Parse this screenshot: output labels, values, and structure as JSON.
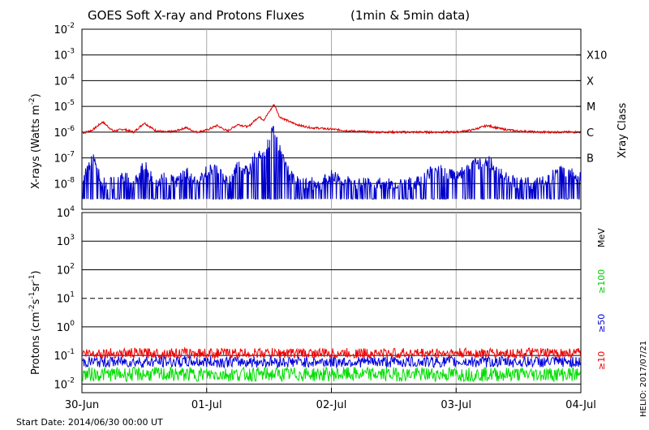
{
  "chart_data": [
    {
      "type": "line",
      "title": "GOES Soft X-ray and Protons Fluxes",
      "subtitle": "(1min & 5min data)",
      "ylabel_base": "X-rays (Watts m",
      "ylabel_exp": "-2",
      "ylabel_end": ")",
      "yscale": "log",
      "ylim": [
        1e-09,
        0.01
      ],
      "yticks": [
        {
          "base": "10",
          "exp": "-2"
        },
        {
          "base": "10",
          "exp": "-3"
        },
        {
          "base": "10",
          "exp": "-4"
        },
        {
          "base": "10",
          "exp": "-5"
        },
        {
          "base": "10",
          "exp": "-6"
        },
        {
          "base": "10",
          "exp": "-7"
        },
        {
          "base": "10",
          "exp": "-8"
        }
      ],
      "right_axis_label": "Xray Class",
      "class_labels": [
        "X10",
        "X",
        "M",
        "C",
        "B"
      ],
      "series": [
        {
          "color": "#dd0000",
          "x": [
            "2014-06-30 00:00",
            "2014-06-30 02:00",
            "2014-06-30 04:00",
            "2014-06-30 06:00",
            "2014-06-30 08:00",
            "2014-06-30 10:00",
            "2014-06-30 12:00",
            "2014-06-30 14:00",
            "2014-06-30 16:00",
            "2014-06-30 18:00",
            "2014-06-30 20:00",
            "2014-06-30 22:00",
            "2014-07-01 00:00",
            "2014-07-01 02:00",
            "2014-07-01 04:00",
            "2014-07-01 06:00",
            "2014-07-01 08:00",
            "2014-07-01 10:00",
            "2014-07-01 11:00",
            "2014-07-01 12:00",
            "2014-07-01 13:00",
            "2014-07-01 14:00",
            "2014-07-01 16:00",
            "2014-07-01 18:00",
            "2014-07-01 20:00",
            "2014-07-01 22:00",
            "2014-07-02 00:00",
            "2014-07-02 04:00",
            "2014-07-02 08:00",
            "2014-07-02 12:00",
            "2014-07-02 16:00",
            "2014-07-02 20:00",
            "2014-07-03 00:00",
            "2014-07-03 03:00",
            "2014-07-03 06:00",
            "2014-07-03 09:00",
            "2014-07-03 12:00",
            "2014-07-03 16:00",
            "2014-07-03 20:00",
            "2014-07-04 00:00"
          ],
          "values": [
            9e-07,
            1.2e-06,
            2.5e-06,
            1.1e-06,
            1.3e-06,
            1e-06,
            2.3e-06,
            1.2e-06,
            1e-06,
            1.1e-06,
            1.5e-06,
            1e-06,
            1.2e-06,
            1.8e-06,
            1.1e-06,
            2e-06,
            1.6e-06,
            4e-06,
            3e-06,
            6e-06,
            1.2e-05,
            4e-06,
            2.5e-06,
            1.8e-06,
            1.5e-06,
            1.4e-06,
            1.3e-06,
            1.1e-06,
            1e-06,
            1e-06,
            1e-06,
            1e-06,
            1e-06,
            1.2e-06,
            1.8e-06,
            1.3e-06,
            1.1e-06,
            1e-06,
            1e-06,
            1e-06
          ]
        },
        {
          "color": "#0000cc",
          "x": [
            "2014-06-30 00:00",
            "2014-06-30 02:00",
            "2014-06-30 04:00",
            "2014-06-30 06:00",
            "2014-06-30 08:00",
            "2014-06-30 10:00",
            "2014-06-30 12:00",
            "2014-06-30 14:00",
            "2014-06-30 16:00",
            "2014-06-30 18:00",
            "2014-06-30 20:00",
            "2014-06-30 22:00",
            "2014-07-01 00:00",
            "2014-07-01 02:00",
            "2014-07-01 04:00",
            "2014-07-01 06:00",
            "2014-07-01 08:00",
            "2014-07-01 10:00",
            "2014-07-01 11:00",
            "2014-07-01 12:00",
            "2014-07-01 13:00",
            "2014-07-01 14:00",
            "2014-07-01 16:00",
            "2014-07-01 18:00",
            "2014-07-01 20:00",
            "2014-07-01 22:00",
            "2014-07-02 00:00",
            "2014-07-02 04:00",
            "2014-07-02 08:00",
            "2014-07-02 12:00",
            "2014-07-02 16:00",
            "2014-07-02 20:00",
            "2014-07-03 00:00",
            "2014-07-03 03:00",
            "2014-07-03 06:00",
            "2014-07-03 09:00",
            "2014-07-03 12:00",
            "2014-07-03 16:00",
            "2014-07-03 20:00",
            "2014-07-04 00:00"
          ],
          "values": [
            1e-08,
            1e-07,
            1e-08,
            1e-08,
            2e-08,
            1e-08,
            5e-08,
            1e-08,
            2e-08,
            1e-08,
            3e-08,
            1e-08,
            3e-08,
            4e-08,
            1e-08,
            5e-08,
            3e-08,
            2e-07,
            1e-07,
            5e-07,
            1.5e-06,
            2e-07,
            2e-08,
            1e-08,
            1e-08,
            1e-08,
            2e-08,
            1e-08,
            1e-08,
            1e-08,
            1e-08,
            4e-08,
            2e-08,
            5e-08,
            8e-08,
            2e-08,
            1e-08,
            1e-08,
            3e-08,
            2e-08
          ]
        }
      ]
    },
    {
      "type": "line",
      "ylabel_base": "Protons (cm",
      "ylabel_exp": "-2",
      "ylabel_mid": "s",
      "ylabel_exp2": "-1",
      "ylabel_mid2": "sr",
      "ylabel_exp3": "-1",
      "ylabel_end": ")",
      "yscale": "log",
      "ylim": [
        0.005,
        10000
      ],
      "yticks": [
        {
          "base": "10",
          "exp": "4"
        },
        {
          "base": "10",
          "exp": "3"
        },
        {
          "base": "10",
          "exp": "2"
        },
        {
          "base": "10",
          "exp": "1"
        },
        {
          "base": "10",
          "exp": "0"
        },
        {
          "base": "10",
          "exp": "-1"
        },
        {
          "base": "10",
          "exp": "-2"
        }
      ],
      "xticks": [
        "30-Jun",
        "01-Jul",
        "02-Jul",
        "03-Jul",
        "04-Jul"
      ],
      "mev_label": "MeV",
      "series": [
        {
          "name": "≥10",
          "color": "#ee0000",
          "level": 0.12,
          "spread": 0.18
        },
        {
          "name": "≥50",
          "color": "#0000dd",
          "level": 0.06,
          "spread": 0.2
        },
        {
          "name": "≥100",
          "color": "#00dd00",
          "level": 0.022,
          "spread": 0.25
        }
      ]
    }
  ],
  "footer": {
    "start_date": "Start Date: 2014/06/30 00:00 UT",
    "credit": "HELIO: 2017/07/21"
  }
}
